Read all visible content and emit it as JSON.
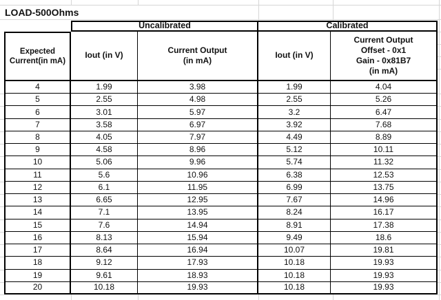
{
  "title": "LOAD-500Ohms",
  "table": {
    "group_headers": {
      "uncalibrated": "Uncalibrated",
      "calibrated": "Calibrated"
    },
    "columns": [
      "Expected\nCurrent(in mA)",
      "Iout (in V)",
      "Current Output\n(in mA)",
      "Iout (in V)",
      "Current Output\nOffset - 0x1\nGain - 0x81B7\n(in mA)"
    ],
    "rows": [
      [
        "4",
        "1.99",
        "3.98",
        "1.99",
        "4.04"
      ],
      [
        "5",
        "2.55",
        "4.98",
        "2.55",
        "5.26"
      ],
      [
        "6",
        "3.01",
        "5.97",
        "3.2",
        "6.47"
      ],
      [
        "7",
        "3.58",
        "6.97",
        "3.92",
        "7.68"
      ],
      [
        "8",
        "4.05",
        "7.97",
        "4.49",
        "8.89"
      ],
      [
        "9",
        "4.58",
        "8.96",
        "5.12",
        "10.11"
      ],
      [
        "10",
        "5.06",
        "9.96",
        "5.74",
        "11.32"
      ],
      [
        "11",
        "5.6",
        "10.96",
        "6.38",
        "12.53"
      ],
      [
        "12",
        "6.1",
        "11.95",
        "6.99",
        "13.75"
      ],
      [
        "13",
        "6.65",
        "12.95",
        "7.67",
        "14.96"
      ],
      [
        "14",
        "7.1",
        "13.95",
        "8.24",
        "16.17"
      ],
      [
        "15",
        "7.6",
        "14.94",
        "8.91",
        "17.38"
      ],
      [
        "16",
        "8.13",
        "15.94",
        "9.49",
        "18.6"
      ],
      [
        "17",
        "8.64",
        "16.94",
        "10.07",
        "19.81"
      ],
      [
        "18",
        "9.12",
        "17.93",
        "10.18",
        "19.93"
      ],
      [
        "19",
        "9.61",
        "18.93",
        "10.18",
        "19.93"
      ],
      [
        "20",
        "10.18",
        "19.93",
        "10.18",
        "19.93"
      ]
    ]
  },
  "colors": {
    "border": "#000000",
    "gridline": "#d6d6d6",
    "background": "#ffffff"
  }
}
